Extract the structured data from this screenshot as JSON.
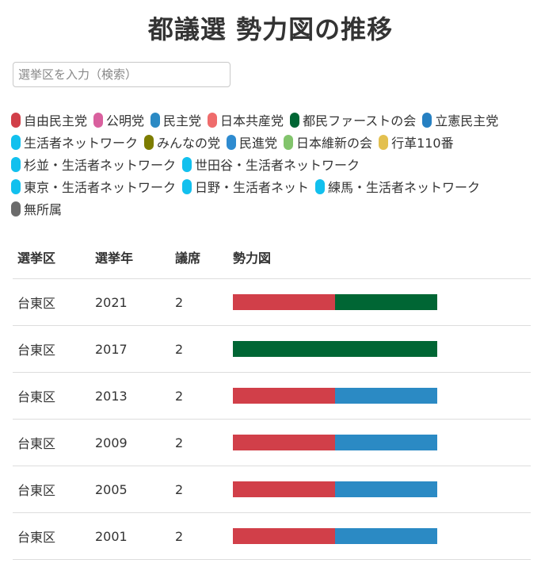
{
  "title": "都議選 勢力図の推移",
  "search": {
    "placeholder": "選挙区を入力（検索）"
  },
  "legend": [
    {
      "label": "自由民主党",
      "color": "#d13f49"
    },
    {
      "label": "公明党",
      "color": "#d9609e"
    },
    {
      "label": "民主党",
      "color": "#2b8ac4"
    },
    {
      "label": "日本共産党",
      "color": "#ef6c6c"
    },
    {
      "label": "都民ファーストの会",
      "color": "#006634"
    },
    {
      "label": "立憲民主党",
      "color": "#2680c2"
    },
    {
      "label": "生活者ネットワーク",
      "color": "#12c0ee"
    },
    {
      "label": "みんなの党",
      "color": "#7d7d00"
    },
    {
      "label": "民進党",
      "color": "#2e8bd0"
    },
    {
      "label": "日本維新の会",
      "color": "#82c46c"
    },
    {
      "label": "行革110番",
      "color": "#e3c04f"
    },
    {
      "label": "杉並・生活者ネットワーク",
      "color": "#12c0ee"
    },
    {
      "label": "世田谷・生活者ネットワーク",
      "color": "#12c0ee"
    },
    {
      "label": "東京・生活者ネットワーク",
      "color": "#12c0ee"
    },
    {
      "label": "日野・生活者ネット",
      "color": "#12c0ee"
    },
    {
      "label": "練馬・生活者ネットワーク",
      "color": "#12c0ee"
    },
    {
      "label": "無所属",
      "color": "#6b6b6b"
    }
  ],
  "table": {
    "headers": [
      "選挙区",
      "選挙年",
      "議席",
      "勢力図"
    ]
  },
  "chart_data": {
    "type": "table",
    "rows": [
      {
        "district": "台東区",
        "year": "2021",
        "seats": "2",
        "parties": [
          "自由民主党",
          "都民ファーストの会"
        ]
      },
      {
        "district": "台東区",
        "year": "2017",
        "seats": "2",
        "parties": [
          "都民ファーストの会",
          "都民ファーストの会"
        ]
      },
      {
        "district": "台東区",
        "year": "2013",
        "seats": "2",
        "parties": [
          "自由民主党",
          "民主党"
        ]
      },
      {
        "district": "台東区",
        "year": "2009",
        "seats": "2",
        "parties": [
          "自由民主党",
          "民主党"
        ]
      },
      {
        "district": "台東区",
        "year": "2005",
        "seats": "2",
        "parties": [
          "自由民主党",
          "民主党"
        ]
      },
      {
        "district": "台東区",
        "year": "2001",
        "seats": "2",
        "parties": [
          "自由民主党",
          "民主党"
        ]
      }
    ]
  }
}
